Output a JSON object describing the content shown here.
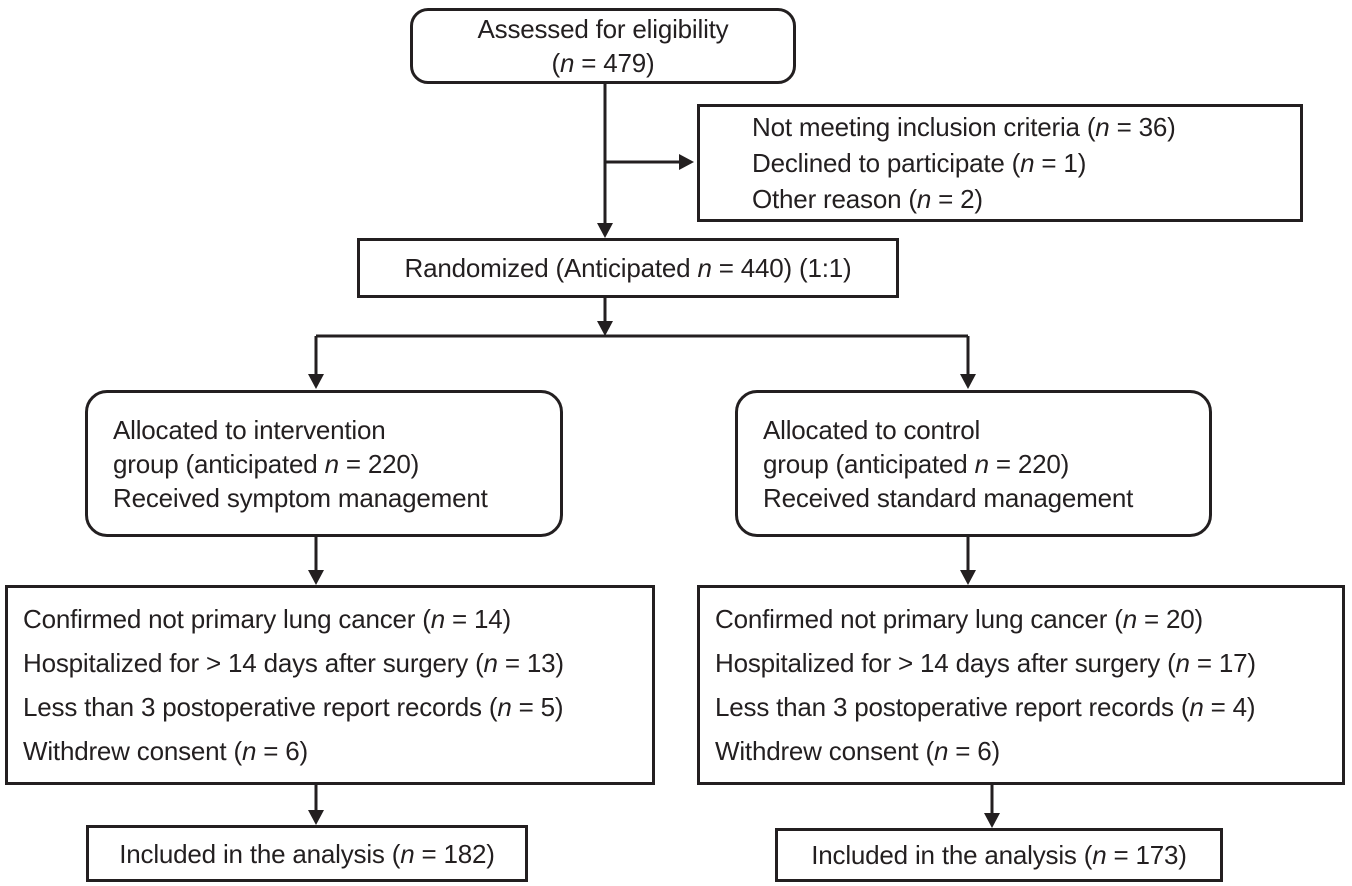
{
  "figure": {
    "type": "consort-flow-diagram",
    "background": "#ffffff",
    "line_color": "#231f20",
    "text_color": "#231f20"
  },
  "boxes": {
    "assessed": {
      "lines": [
        "Assessed for eligibility",
        "(*n* = 479)"
      ]
    },
    "excluded_after_assessment": {
      "lines": [
        "Not meeting inclusion criteria (*n* = 36)",
        "Declined to participate (*n* = 1)",
        "Other reason (*n* = 2)"
      ]
    },
    "randomized": {
      "lines": [
        "Randomized (Anticipated *n* = 440) (1:1)"
      ]
    },
    "allocated_intervention": {
      "lines": [
        "Allocated to intervention",
        "group (anticipated *n* = 220)",
        "Received symptom management"
      ]
    },
    "allocated_control": {
      "lines": [
        "Allocated to control",
        "group (anticipated *n* = 220)",
        "Received standard management"
      ]
    },
    "excluded_intervention": {
      "lines": [
        "Confirmed not primary lung cancer (*n* = 14)",
        "Hospitalized for > 14 days after surgery (*n* = 13)",
        "Less than 3 postoperative report records (*n* = 5)",
        "Withdrew consent (*n* = 6)"
      ]
    },
    "excluded_control": {
      "lines": [
        "Confirmed not primary lung cancer (*n* = 20)",
        "Hospitalized for > 14 days after surgery (*n* = 17)",
        "Less than 3 postoperative report records (*n* = 4)",
        "Withdrew consent (*n* = 6)"
      ]
    },
    "analyzed_intervention": {
      "lines": [
        "Included in the analysis (*n* = 182)"
      ]
    },
    "analyzed_control": {
      "lines": [
        "Included in the analysis (*n* = 173)"
      ]
    }
  }
}
